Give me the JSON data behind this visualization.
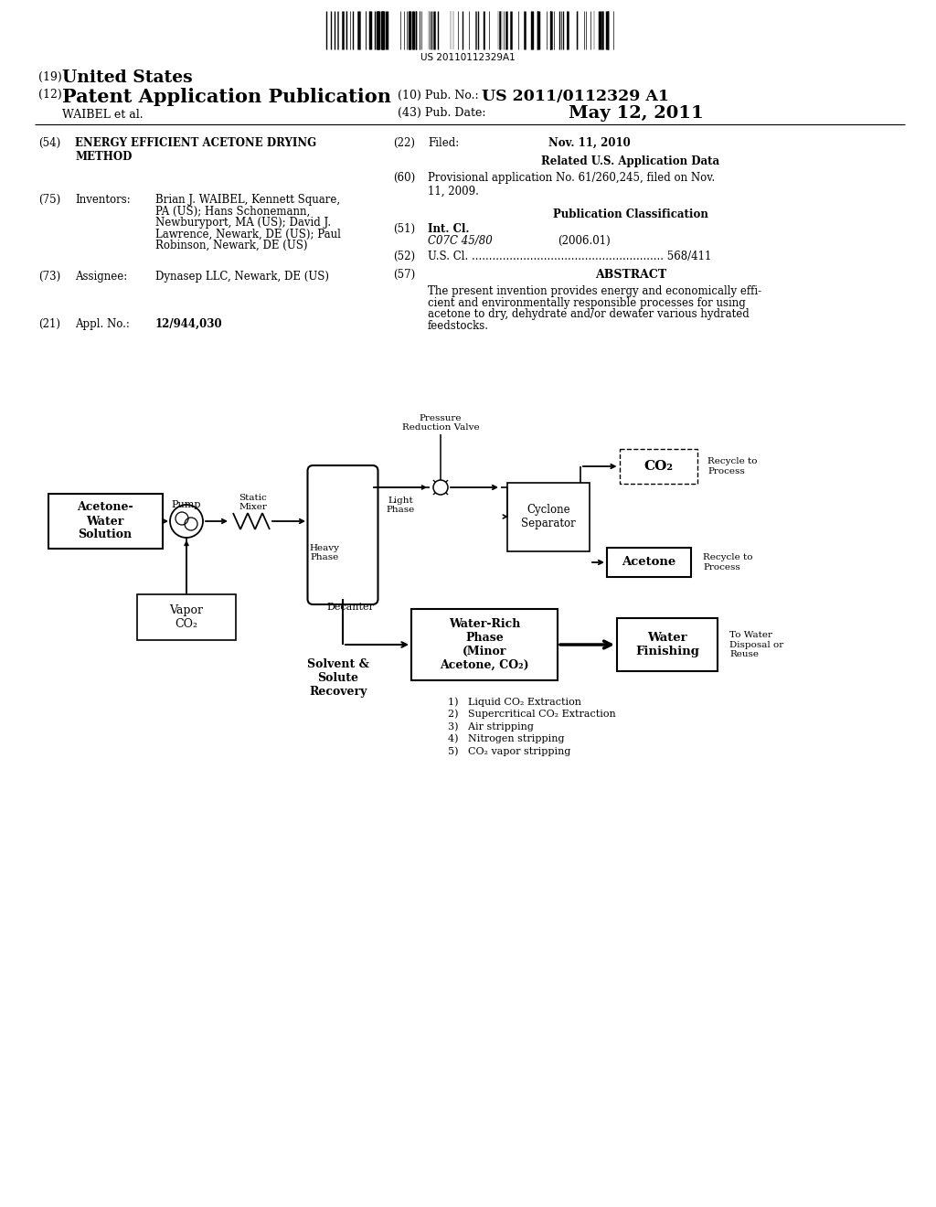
{
  "bg_color": "#ffffff",
  "barcode_text": "US 20110112329A1",
  "title_19": "(19) United States",
  "title_12": "(12) Patent Application Publication",
  "pub_no_label": "(10) Pub. No.:",
  "pub_no": "US 2011/0112329 A1",
  "inventors_label": "WAIBEL et al.",
  "pub_date_label": "(43) Pub. Date:",
  "pub_date": "May 12, 2011",
  "section_54_label": "(54)",
  "section_54_title": "ENERGY EFFICIENT ACETONE DRYING\nMETHOD",
  "section_22_label": "(22)",
  "section_22_filed": "Filed:",
  "section_22_date": "Nov. 11, 2010",
  "related_data_title": "Related U.S. Application Data",
  "section_60_label": "(60)",
  "section_60_text": "Provisional application No. 61/260,245, filed on Nov.\n11, 2009.",
  "section_75_label": "(75)",
  "section_75_title": "Inventors:",
  "section_75_lines": [
    "Brian J. WAIBEL, Kennett Square,",
    "PA (US); Hans Schonemann,",
    "Newburyport, MA (US); David J.",
    "Lawrence, Newark, DE (US); Paul",
    "Robinson, Newark, DE (US)"
  ],
  "section_75_bold": [
    "Brian J. WAIBEL",
    "David J.",
    "Lawrence",
    "Paul",
    "Robinson"
  ],
  "pub_class_title": "Publication Classification",
  "section_51_label": "(51)",
  "section_51_title": "Int. Cl.",
  "section_51_class": "C07C 45/80",
  "section_51_year": "(2006.01)",
  "section_52_label": "(52)",
  "section_52_text": "U.S. Cl. ........................................................ 568/411",
  "section_57_label": "(57)",
  "section_57_title": "ABSTRACT",
  "section_57_lines": [
    "The present invention provides energy and economically effi-",
    "cient and environmentally responsible processes for using",
    "acetone to dry, dehydrate and/or dewater various hydrated",
    "feedstocks."
  ],
  "section_73_label": "(73)",
  "section_73_title": "Assignee:",
  "section_73_text": "Dynasep LLC, Newark, DE (US)",
  "section_21_label": "(21)",
  "section_21_title": "Appl. No.:",
  "section_21_text": "12/944,030",
  "diag_acetone_box": "Acetone-\nWater\nSolution",
  "diag_pump_label": "Pump",
  "diag_static_mixer_label": "Static\nMixer",
  "diag_vapor_co2": "Vapor\nCO₂",
  "diag_decanter": "Decanter",
  "diag_light_phase": "Light\nPhase",
  "diag_heavy_phase": "Heavy\nPhase",
  "diag_pressure_valve": "Pressure\nReduction Valve",
  "diag_co2_box": "CO₂",
  "diag_co2_recycle": "Recycle to\nProcess",
  "diag_cyclone": "Cyclone\nSeparator",
  "diag_acetone_box2": "Acetone",
  "diag_acetone_recycle": "Recycle to\nProcess",
  "diag_water_rich": "Water-Rich\nPhase\n(Minor\nAcetone, CO₂)",
  "diag_water_finishing": "Water\nFinishing",
  "diag_to_water": "To Water\nDisposal or\nReuse",
  "diag_solvent_recovery": "Solvent &\nSolute\nRecovery",
  "diag_list": [
    "1)   Liquid CO₂ Extraction",
    "2)   Supercritical CO₂ Extraction",
    "3)   Air stripping",
    "4)   Nitrogen stripping",
    "5)   CO₂ vapor stripping"
  ]
}
